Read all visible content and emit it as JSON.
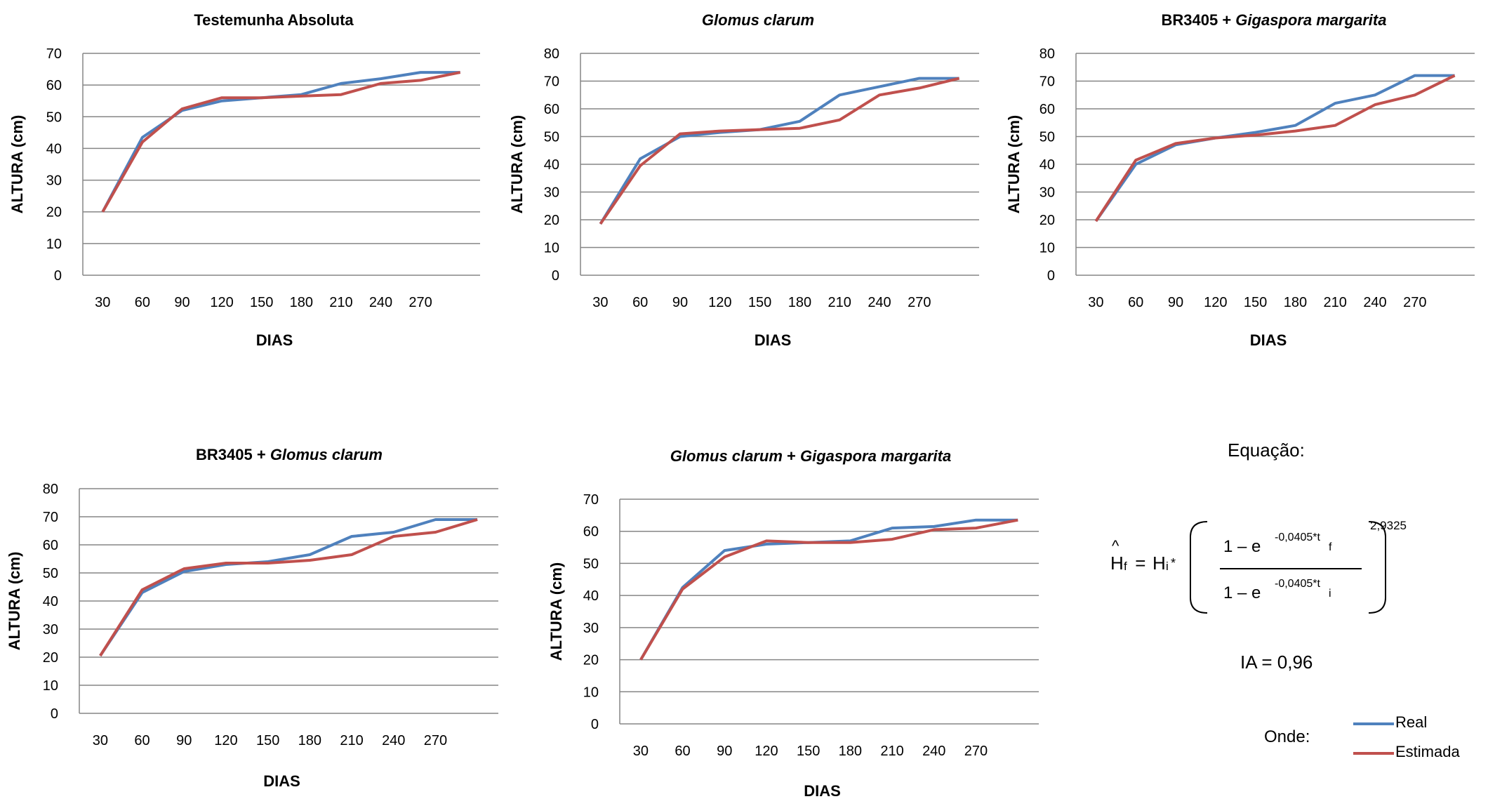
{
  "chart_data": [
    {
      "type": "line",
      "title": "Testemunha Absoluta",
      "title_style": "bold",
      "xlabel": "DIAS",
      "ylabel": "ALTURA (cm)",
      "categories": [
        "30",
        "60",
        "90",
        "120",
        "150",
        "180",
        "210",
        "240",
        "270",
        ""
      ],
      "yticks": [
        0,
        10,
        20,
        30,
        40,
        50,
        60,
        70
      ],
      "ylim": [
        0,
        70
      ],
      "grid": true,
      "series": [
        {
          "name": "Real",
          "color": "#4F81BD",
          "values": [
            20,
            43.5,
            52,
            55,
            56,
            57,
            60.5,
            62,
            64,
            64
          ]
        },
        {
          "name": "Estimada",
          "color": "#C0504D",
          "values": [
            20,
            42,
            52.5,
            56,
            56,
            56.5,
            57,
            60.5,
            61.5,
            64
          ]
        }
      ]
    },
    {
      "type": "line",
      "title": "Glomus clarum",
      "title_style": "italic",
      "xlabel": "DIAS",
      "ylabel": "ALTURA (cm)",
      "categories": [
        "30",
        "60",
        "90",
        "120",
        "150",
        "180",
        "210",
        "240",
        "270",
        ""
      ],
      "yticks": [
        0,
        10,
        20,
        30,
        40,
        50,
        60,
        70,
        80
      ],
      "ylim": [
        0,
        80
      ],
      "grid": true,
      "series": [
        {
          "name": "Real",
          "color": "#4F81BD",
          "values": [
            18.5,
            42,
            50,
            51.5,
            52.5,
            55.5,
            65,
            68,
            71,
            71
          ]
        },
        {
          "name": "Estimada",
          "color": "#C0504D",
          "values": [
            18.5,
            39.5,
            51,
            52,
            52.5,
            53,
            56,
            65,
            67.5,
            71
          ]
        }
      ]
    },
    {
      "type": "line",
      "title_parts": [
        [
          "BR3405 + ",
          "normal"
        ],
        [
          "Gigaspora margarita",
          "italic"
        ]
      ],
      "xlabel": "DIAS",
      "ylabel": "ALTURA (cm)",
      "categories": [
        "30",
        "60",
        "90",
        "120",
        "150",
        "180",
        "210",
        "240",
        "270",
        ""
      ],
      "yticks": [
        0,
        10,
        20,
        30,
        40,
        50,
        60,
        70,
        80
      ],
      "ylim": [
        0,
        80
      ],
      "grid": true,
      "series": [
        {
          "name": "Real",
          "color": "#4F81BD",
          "values": [
            19.5,
            40,
            47,
            49.5,
            51.5,
            54,
            62,
            65,
            72,
            72
          ]
        },
        {
          "name": "Estimada",
          "color": "#C0504D",
          "values": [
            19.5,
            41.5,
            47.5,
            49.5,
            50.5,
            52,
            54,
            61.5,
            65,
            72
          ]
        }
      ]
    },
    {
      "type": "line",
      "title_parts": [
        [
          "BR3405 + ",
          "normal"
        ],
        [
          "Glomus clarum",
          "italic"
        ]
      ],
      "xlabel": "DIAS",
      "ylabel": "ALTURA (cm)",
      "categories": [
        "30",
        "60",
        "90",
        "120",
        "150",
        "180",
        "210",
        "240",
        "270",
        ""
      ],
      "yticks": [
        0,
        10,
        20,
        30,
        40,
        50,
        60,
        70,
        80
      ],
      "ylim": [
        0,
        80
      ],
      "grid": true,
      "series": [
        {
          "name": "Real",
          "color": "#4F81BD",
          "values": [
            20.5,
            43,
            50.5,
            53,
            54,
            56.5,
            63,
            64.5,
            69,
            69
          ]
        },
        {
          "name": "Estimada",
          "color": "#C0504D",
          "values": [
            20.5,
            44,
            51.5,
            53.5,
            53.5,
            54.5,
            56.5,
            63,
            64.5,
            69
          ]
        }
      ]
    },
    {
      "type": "line",
      "title_parts": [
        [
          "Glomus clarum",
          "italic"
        ],
        [
          " + ",
          "normal"
        ],
        [
          "Gigaspora margarita",
          "italic"
        ]
      ],
      "xlabel": "DIAS",
      "ylabel": "ALTURA (cm)",
      "categories": [
        "30",
        "60",
        "90",
        "120",
        "150",
        "180",
        "210",
        "240",
        "270",
        ""
      ],
      "yticks": [
        0,
        10,
        20,
        30,
        40,
        50,
        60,
        70
      ],
      "ylim": [
        0,
        70
      ],
      "grid": true,
      "series": [
        {
          "name": "Real",
          "color": "#4F81BD",
          "values": [
            20,
            42.5,
            54,
            56,
            56.5,
            57,
            61,
            61.5,
            63.5,
            63.5
          ]
        },
        {
          "name": "Estimada",
          "color": "#C0504D",
          "values": [
            20,
            42,
            52,
            57,
            56.5,
            56.5,
            57.5,
            60.5,
            61,
            63.5
          ]
        }
      ]
    }
  ],
  "equation": {
    "heading": "Equação:",
    "hat": "^",
    "lhs_H": "H",
    "lhs_sub": "f",
    "eq_sign": " = ",
    "rhs_H": "H",
    "rhs_sub": "i",
    "mult": "*",
    "numerator_base": "1 – e",
    "numerator_exp": "-0,0405*t",
    "numerator_sub": "f",
    "denominator_base": "1 – e",
    "denominator_exp": "-0,0405*t",
    "denominator_sub": "i",
    "power": "2,9325",
    "ia": "IA = 0,96"
  },
  "legend": {
    "onde": "Onde:",
    "items": [
      {
        "label": "Real",
        "color": "#4F81BD"
      },
      {
        "label": "Estimada",
        "color": "#C0504D"
      }
    ]
  }
}
